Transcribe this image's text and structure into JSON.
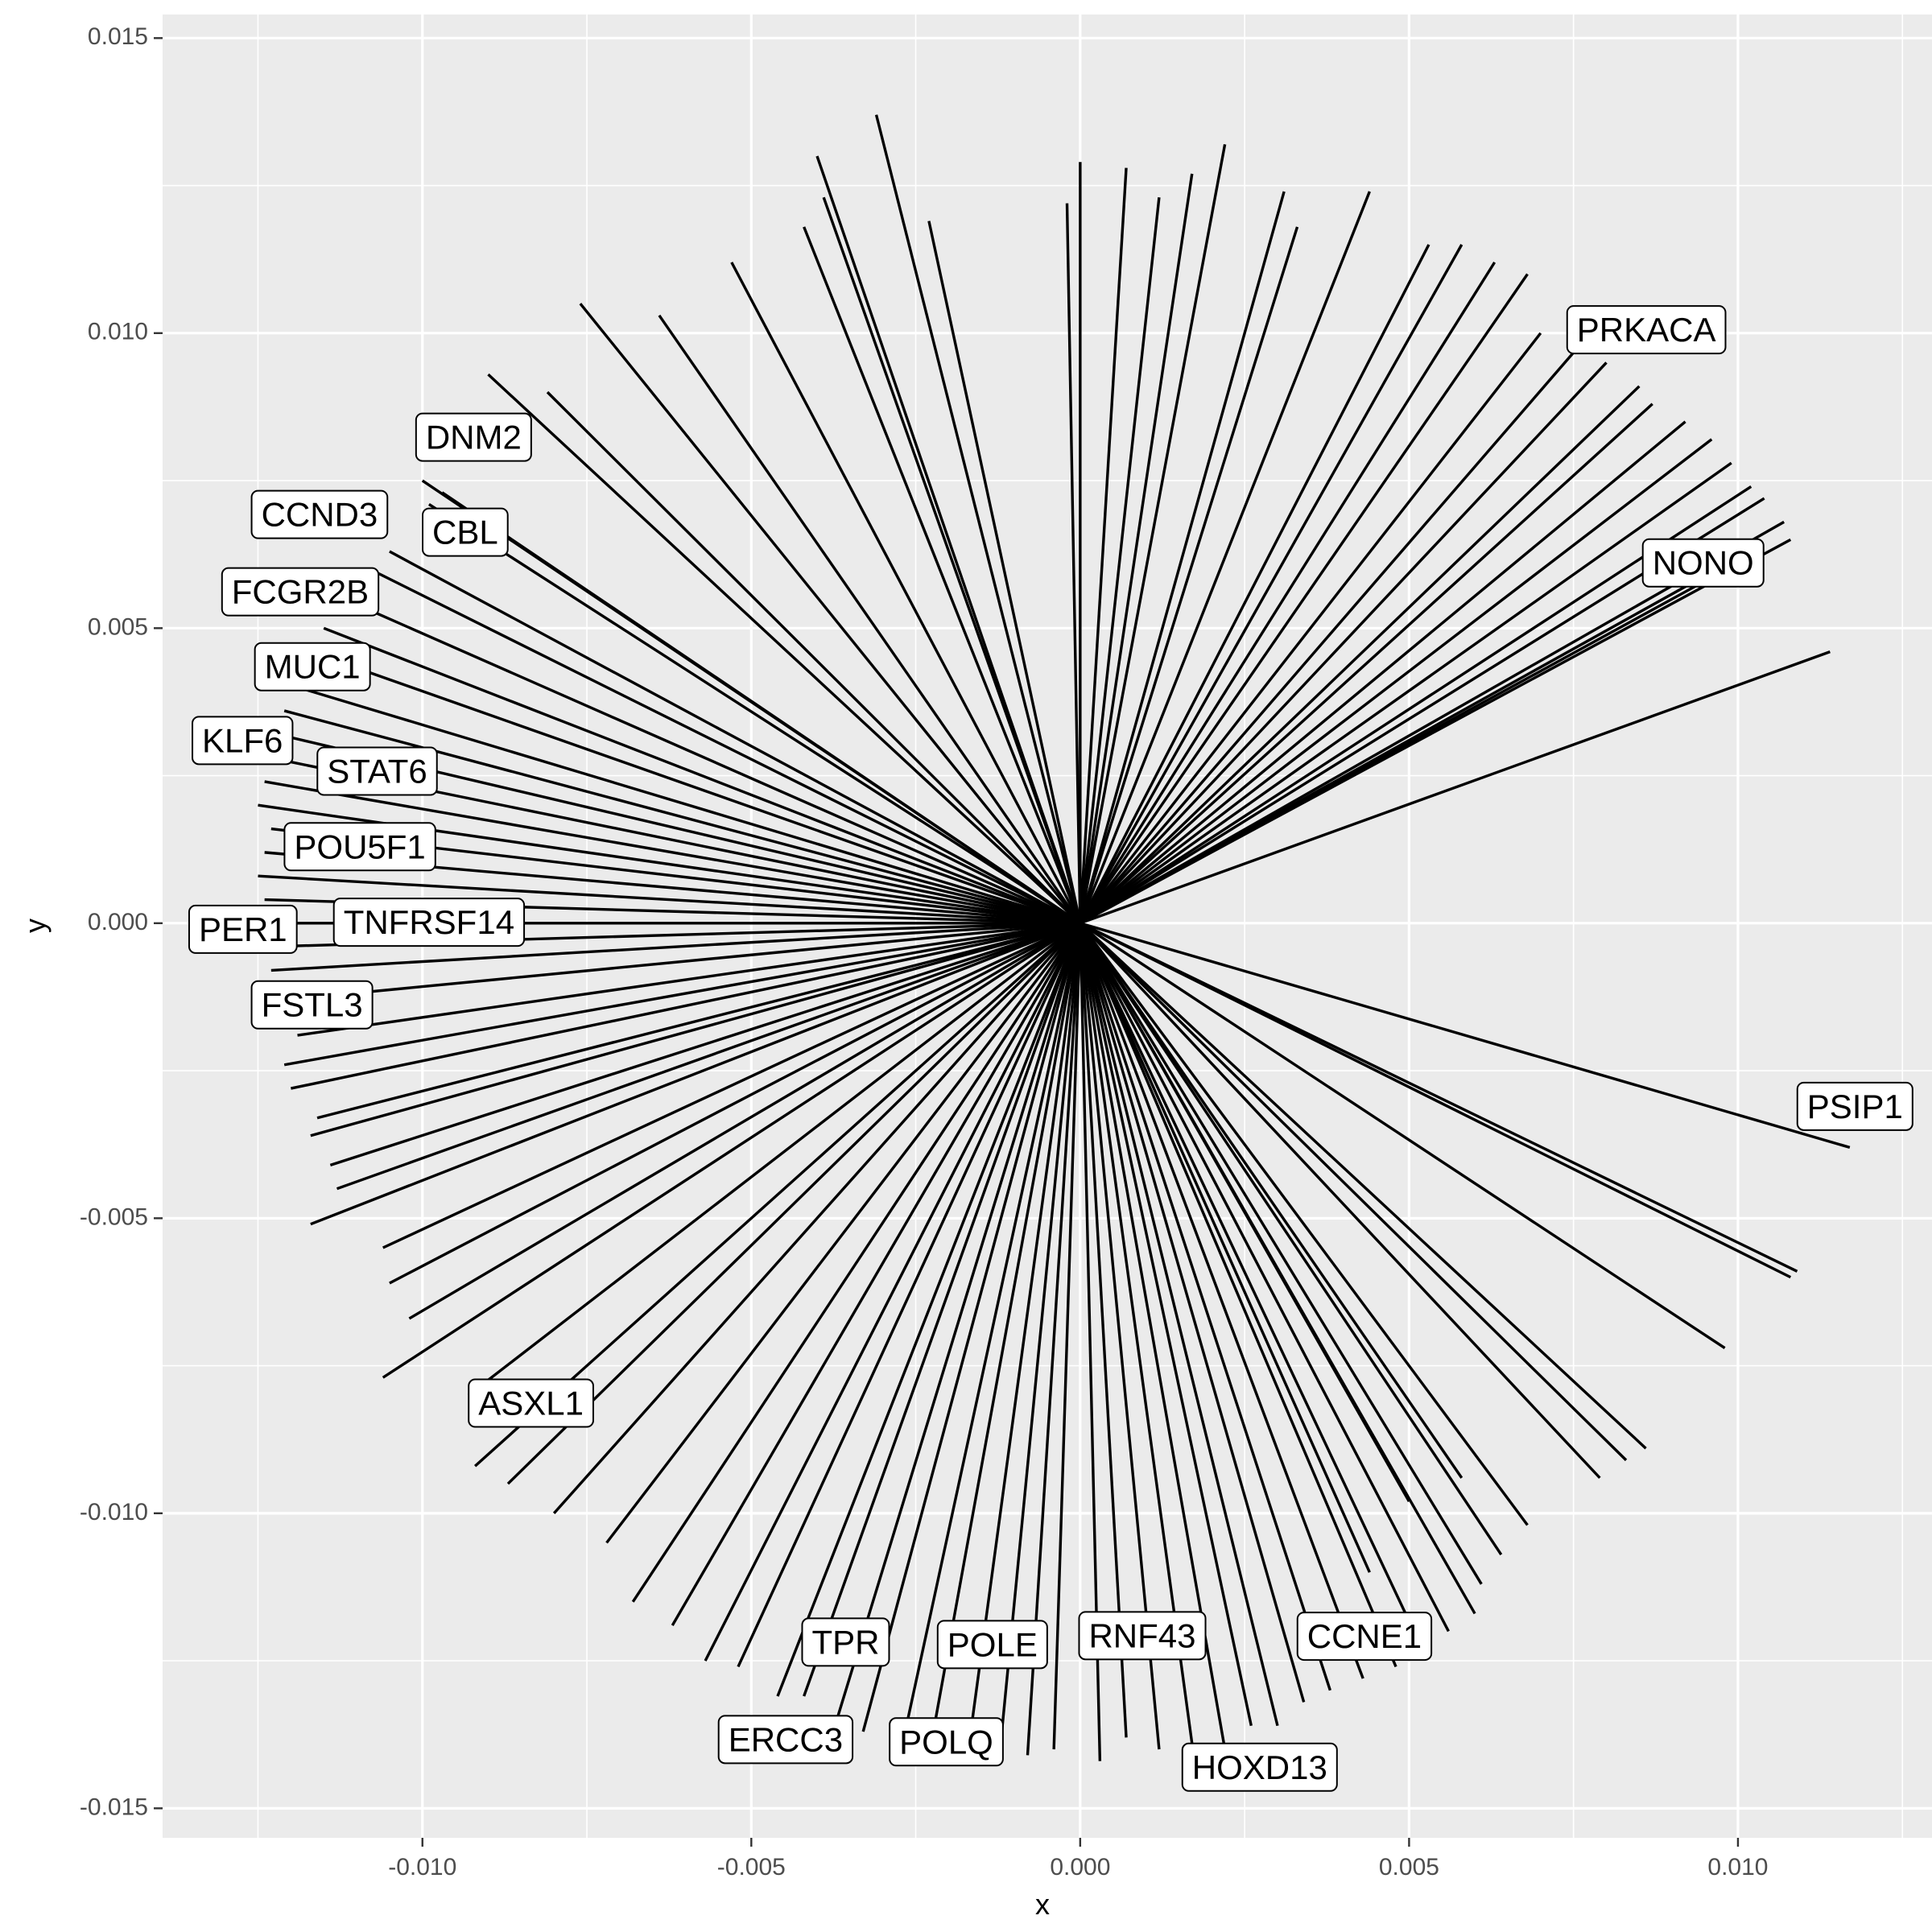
{
  "chart_data": {
    "type": "line",
    "xlabel": "x",
    "ylabel": "y",
    "xlim": [
      -0.01395,
      0.01295
    ],
    "ylim": [
      -0.0155,
      0.0154
    ],
    "x_ticks": [
      -0.01,
      -0.005,
      0.0,
      0.005,
      0.01
    ],
    "x_tick_labels": [
      "-0.010",
      "-0.005",
      "0.000",
      "0.005",
      "0.010"
    ],
    "y_ticks": [
      -0.015,
      -0.01,
      -0.005,
      0.0,
      0.005,
      0.01,
      0.015
    ],
    "y_tick_labels": [
      "-0.015",
      "-0.010",
      "-0.005",
      "0.000",
      "0.005",
      "0.010",
      "0.015"
    ],
    "grid": true,
    "legend": "none",
    "background": "#ebebeb",
    "grid_color": "#ffffff",
    "segment_color": "#000000",
    "origin": [
      0,
      0
    ],
    "segment_endpoints": [
      [
        -0.0031,
        0.0137
      ],
      [
        0.0022,
        0.0132
      ],
      [
        0.0,
        0.0129
      ],
      [
        -0.004,
        0.013
      ],
      [
        0.0007,
        0.0128
      ],
      [
        -0.0002,
        0.0122
      ],
      [
        0.0017,
        0.0127
      ],
      [
        -0.0039,
        0.0123
      ],
      [
        -0.0023,
        0.0119
      ],
      [
        0.0031,
        0.0124
      ],
      [
        0.0012,
        0.0123
      ],
      [
        0.0044,
        0.0124
      ],
      [
        0.0033,
        0.0118
      ],
      [
        -0.0042,
        0.0118
      ],
      [
        -0.0053,
        0.0112
      ],
      [
        0.0053,
        0.0115
      ],
      [
        0.0058,
        0.0115
      ],
      [
        -0.0076,
        0.0105
      ],
      [
        -0.0064,
        0.0103
      ],
      [
        0.0063,
        0.0112
      ],
      [
        0.0068,
        0.011
      ],
      [
        0.007,
        0.01
      ],
      [
        0.0076,
        0.0098
      ],
      [
        0.008,
        0.0095
      ],
      [
        0.0085,
        0.0091
      ],
      [
        0.0087,
        0.0088
      ],
      [
        0.0092,
        0.0085
      ],
      [
        0.0096,
        0.0082
      ],
      [
        0.0099,
        0.0078
      ],
      [
        0.0102,
        0.0074
      ],
      [
        0.0104,
        0.0072
      ],
      [
        0.0107,
        0.0068
      ],
      [
        0.0108,
        0.0065
      ],
      [
        0.01,
        0.0062
      ],
      [
        0.0095,
        0.0058
      ],
      [
        0.0114,
        0.0046
      ],
      [
        -0.009,
        0.0093
      ],
      [
        -0.0081,
        0.009
      ],
      [
        -0.01,
        0.0075
      ],
      [
        -0.0097,
        0.0073
      ],
      [
        -0.0099,
        0.0071
      ],
      [
        -0.0105,
        0.0063
      ],
      [
        -0.0108,
        0.006
      ],
      [
        -0.0112,
        0.0055
      ],
      [
        -0.0115,
        0.005
      ],
      [
        -0.0117,
        0.0046
      ],
      [
        -0.0119,
        0.004
      ],
      [
        -0.0121,
        0.0036
      ],
      [
        -0.0122,
        0.0032
      ],
      [
        -0.0123,
        0.0028
      ],
      [
        -0.0124,
        0.0024
      ],
      [
        -0.0125,
        0.002
      ],
      [
        -0.0123,
        0.0016
      ],
      [
        -0.0124,
        0.0012
      ],
      [
        -0.0125,
        0.0008
      ],
      [
        -0.0124,
        0.0004
      ],
      [
        -0.0125,
        0.0
      ],
      [
        -0.0124,
        -0.0004
      ],
      [
        -0.0123,
        -0.0008
      ],
      [
        -0.0121,
        -0.0013
      ],
      [
        -0.0119,
        -0.0019
      ],
      [
        -0.0121,
        -0.0024
      ],
      [
        -0.012,
        -0.0028
      ],
      [
        -0.0116,
        -0.0033
      ],
      [
        -0.0117,
        -0.0036
      ],
      [
        -0.0114,
        -0.0041
      ],
      [
        -0.0113,
        -0.0045
      ],
      [
        -0.0117,
        -0.0051
      ],
      [
        -0.0106,
        -0.0055
      ],
      [
        -0.0105,
        -0.0061
      ],
      [
        -0.0102,
        -0.0067
      ],
      [
        -0.0106,
        -0.0077
      ],
      [
        -0.0093,
        -0.008
      ],
      [
        -0.0092,
        -0.0092
      ],
      [
        -0.0087,
        -0.0095
      ],
      [
        -0.008,
        -0.01
      ],
      [
        -0.0072,
        -0.0105
      ],
      [
        -0.0068,
        -0.0115
      ],
      [
        -0.0062,
        -0.0119
      ],
      [
        -0.0057,
        -0.0125
      ],
      [
        -0.0052,
        -0.0126
      ],
      [
        -0.0046,
        -0.0131
      ],
      [
        -0.0042,
        -0.0131
      ],
      [
        -0.0037,
        -0.0135
      ],
      [
        -0.0033,
        -0.0137
      ],
      [
        -0.0027,
        -0.0139
      ],
      [
        -0.0022,
        -0.0135
      ],
      [
        -0.0017,
        -0.014
      ],
      [
        -0.0012,
        -0.0138
      ],
      [
        -0.0008,
        -0.0141
      ],
      [
        -0.0004,
        -0.014
      ],
      [
        0.0003,
        -0.0142
      ],
      [
        0.0007,
        -0.0138
      ],
      [
        0.0012,
        -0.014
      ],
      [
        0.0017,
        -0.0139
      ],
      [
        0.0022,
        -0.014
      ],
      [
        0.0026,
        -0.0136
      ],
      [
        0.003,
        -0.0136
      ],
      [
        0.0034,
        -0.0132
      ],
      [
        0.0038,
        -0.013
      ],
      [
        0.0043,
        -0.0128
      ],
      [
        0.0048,
        -0.0126
      ],
      [
        0.0052,
        -0.0123
      ],
      [
        0.0056,
        -0.012
      ],
      [
        0.006,
        -0.0117
      ],
      [
        0.0061,
        -0.0112
      ],
      [
        0.0064,
        -0.0107
      ],
      [
        0.0068,
        -0.0102
      ],
      [
        0.0079,
        -0.0094
      ],
      [
        0.0086,
        -0.0089
      ],
      [
        0.0083,
        -0.0091
      ],
      [
        0.0098,
        -0.0072
      ],
      [
        0.0108,
        -0.006
      ],
      [
        0.0109,
        -0.0059
      ],
      [
        0.0117,
        -0.0038
      ],
      [
        0.0058,
        -0.0094
      ],
      [
        0.005,
        -0.0098
      ],
      [
        0.0044,
        -0.011
      ]
    ],
    "labels": [
      {
        "text": "PRKACA",
        "x": 0.00755,
        "y": 0.01001
      },
      {
        "text": "DNM2",
        "x": -0.00995,
        "y": 0.00819
      },
      {
        "text": "CCND3",
        "x": -0.01245,
        "y": 0.00688
      },
      {
        "text": "CBL",
        "x": -0.00985,
        "y": 0.00658
      },
      {
        "text": "NONO",
        "x": 0.0087,
        "y": 0.00606
      },
      {
        "text": "FCGR2B",
        "x": -0.0129,
        "y": 0.00557
      },
      {
        "text": "MUC1",
        "x": -0.0124,
        "y": 0.0043
      },
      {
        "text": "KLF6",
        "x": -0.01335,
        "y": 0.00305
      },
      {
        "text": "STAT6",
        "x": -0.01145,
        "y": 0.00253
      },
      {
        "text": "POU5F1",
        "x": -0.01195,
        "y": 0.00125
      },
      {
        "text": "TNFRSF14",
        "x": -0.0112,
        "y": -3e-05
      },
      {
        "text": "PER1",
        "x": -0.0134,
        "y": -0.00015
      },
      {
        "text": "FSTL3",
        "x": -0.01245,
        "y": -0.00143
      },
      {
        "text": "PSIP1",
        "x": 0.01105,
        "y": -0.00315
      },
      {
        "text": "ASXL1",
        "x": -0.00915,
        "y": -0.00818
      },
      {
        "text": "TPR",
        "x": -0.00408,
        "y": -0.01223
      },
      {
        "text": "POLE",
        "x": -0.00202,
        "y": -0.01227
      },
      {
        "text": "RNF43",
        "x": 0.00013,
        "y": -0.01212
      },
      {
        "text": "CCNE1",
        "x": 0.00345,
        "y": -0.01213
      },
      {
        "text": "ERCC3",
        "x": -0.00535,
        "y": -0.01388
      },
      {
        "text": "POLQ",
        "x": -0.00275,
        "y": -0.01392
      },
      {
        "text": "HOXD13",
        "x": 0.0017,
        "y": -0.01435
      }
    ]
  }
}
